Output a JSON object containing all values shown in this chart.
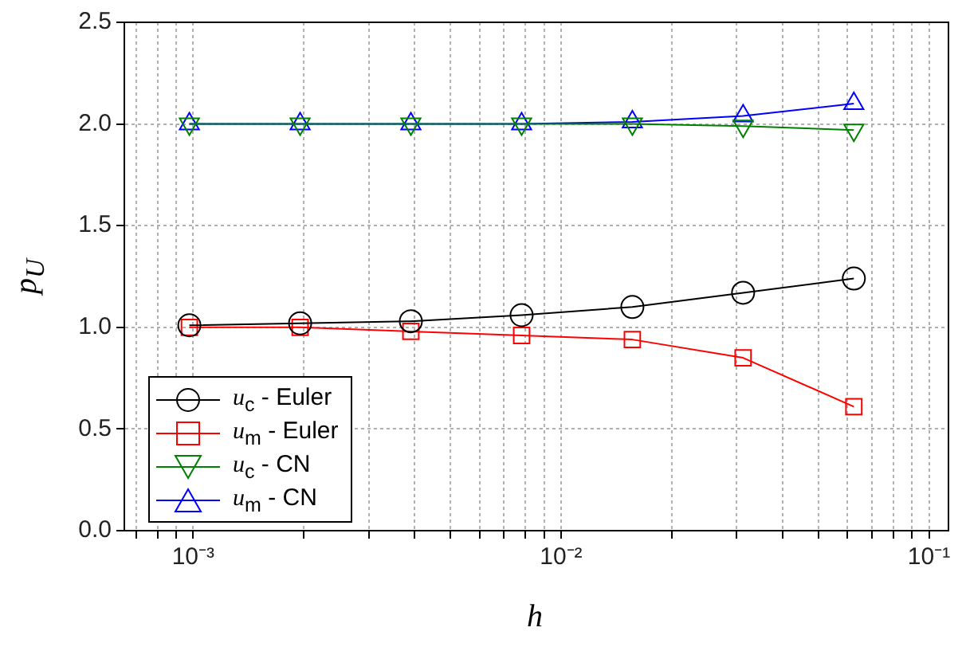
{
  "chart_data": {
    "type": "line",
    "xlabel": "h",
    "ylabel": "p$_{U}$",
    "log": "x",
    "x": [
      0.0009765625,
      0.001953125,
      0.00390625,
      0.0078125,
      0.015625,
      0.03125,
      0.0625
    ],
    "series": [
      {
        "name": "u$_{c}$ - Euler",
        "color": "#000000",
        "marker": "circle",
        "values": [
          1.01,
          1.02,
          1.03,
          1.06,
          1.1,
          1.17,
          1.24
        ]
      },
      {
        "name": "u$_{m}$ - Euler",
        "color": "#ff0000",
        "marker": "square",
        "values": [
          1.0,
          1.0,
          0.98,
          0.96,
          0.94,
          0.85,
          0.61
        ]
      },
      {
        "name": "u$_{c}$ - CN",
        "color": "#008000",
        "marker": "triangle_down",
        "values": [
          2.0,
          2.0,
          2.0,
          2.0,
          2.0,
          1.99,
          1.97
        ]
      },
      {
        "name": "u$_{m}$ - CN",
        "color": "#0000ff",
        "marker": "triangle",
        "values": [
          2.0,
          2.0,
          2.0,
          2.0,
          2.01,
          2.04,
          2.1
        ]
      }
    ],
    "xlim": [
      0.00065,
      0.113
    ],
    "xticks": [
      {
        "value": 0.0007,
        "label": null
      },
      {
        "value": 0.0008,
        "label": null
      },
      {
        "value": 0.0009,
        "label": null
      },
      {
        "value": 0.001,
        "label": "10⁻³"
      },
      {
        "value": 0.002,
        "label": null
      },
      {
        "value": 0.003,
        "label": null
      },
      {
        "value": 0.004,
        "label": null
      },
      {
        "value": 0.005,
        "label": null
      },
      {
        "value": 0.006,
        "label": null
      },
      {
        "value": 0.007,
        "label": null
      },
      {
        "value": 0.008,
        "label": null
      },
      {
        "value": 0.009,
        "label": null
      },
      {
        "value": 0.01,
        "label": "10⁻²"
      },
      {
        "value": 0.02,
        "label": null
      },
      {
        "value": 0.03,
        "label": null
      },
      {
        "value": 0.04,
        "label": null
      },
      {
        "value": 0.05,
        "label": null
      },
      {
        "value": 0.06,
        "label": null
      },
      {
        "value": 0.07,
        "label": null
      },
      {
        "value": 0.08,
        "label": null
      },
      {
        "value": 0.09,
        "label": null
      },
      {
        "value": 0.1,
        "label": "10⁻¹"
      }
    ],
    "ylim": [
      0,
      2.5
    ],
    "yticks": [
      {
        "value": 0,
        "label": "0.0"
      },
      {
        "value": 0.5,
        "label": "0.5"
      },
      {
        "value": 1,
        "label": "1.0"
      },
      {
        "value": 1.5,
        "label": "1.5"
      },
      {
        "value": 2,
        "label": "2.0"
      },
      {
        "value": 2.5,
        "label": "2.5"
      }
    ],
    "grid": true,
    "legend": "bottom left",
    "line_style": "solid"
  }
}
